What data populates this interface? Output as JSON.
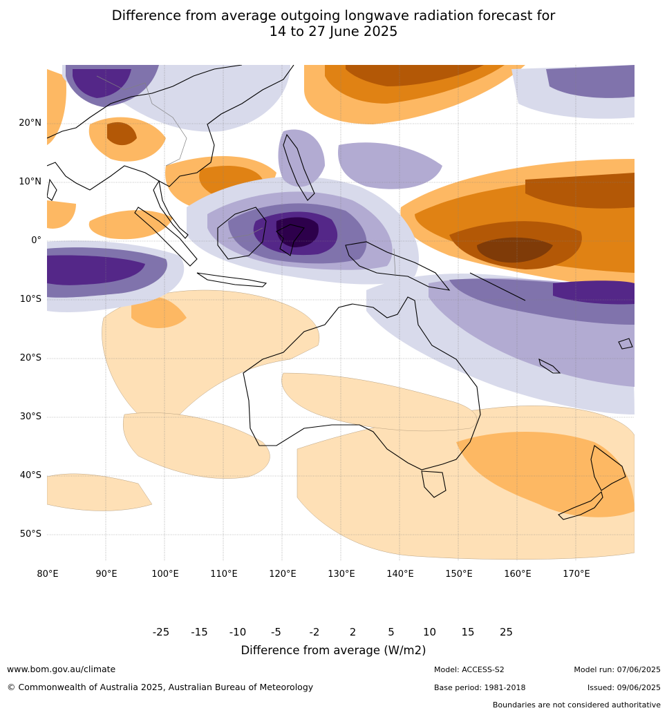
{
  "title": {
    "line1": "Difference from average outgoing longwave radiation forecast for",
    "line2": "14 to 27 June 2025"
  },
  "map": {
    "latitude_labels": [
      "20°N",
      "10°N",
      "0°",
      "10°S",
      "20°S",
      "30°S",
      "40°S",
      "50°S"
    ],
    "longitude_labels": [
      "80°E",
      "90°E",
      "100°E",
      "110°E",
      "120°E",
      "130°E",
      "140°E",
      "150°E",
      "160°E",
      "170°E"
    ],
    "region": "80°E–180°E, 30°N–55°S"
  },
  "colorbar": {
    "ticks": [
      "-25",
      "-15",
      "-10",
      "-5",
      "-2",
      "2",
      "5",
      "10",
      "15",
      "25"
    ],
    "label": "Difference from average (W/m2)",
    "colors": [
      "#2d004b",
      "#542788",
      "#8073ac",
      "#b2abd2",
      "#d8daeb",
      "#ffffff",
      "#fee0b6",
      "#fdb863",
      "#e08214",
      "#b35806",
      "#7f3b08"
    ]
  },
  "footer": {
    "website": "www.bom.gov.au/climate",
    "copyright": "© Commonwealth of Australia 2025, Australian Bureau of Meteorology",
    "model": "Model: ACCESS-S2",
    "base_period": "Base period: 1981-2018",
    "model_run": "Model run: 07/06/2025",
    "issued": "Issued: 09/06/2025",
    "disclaimer": "Boundaries are not considered authoritative"
  }
}
